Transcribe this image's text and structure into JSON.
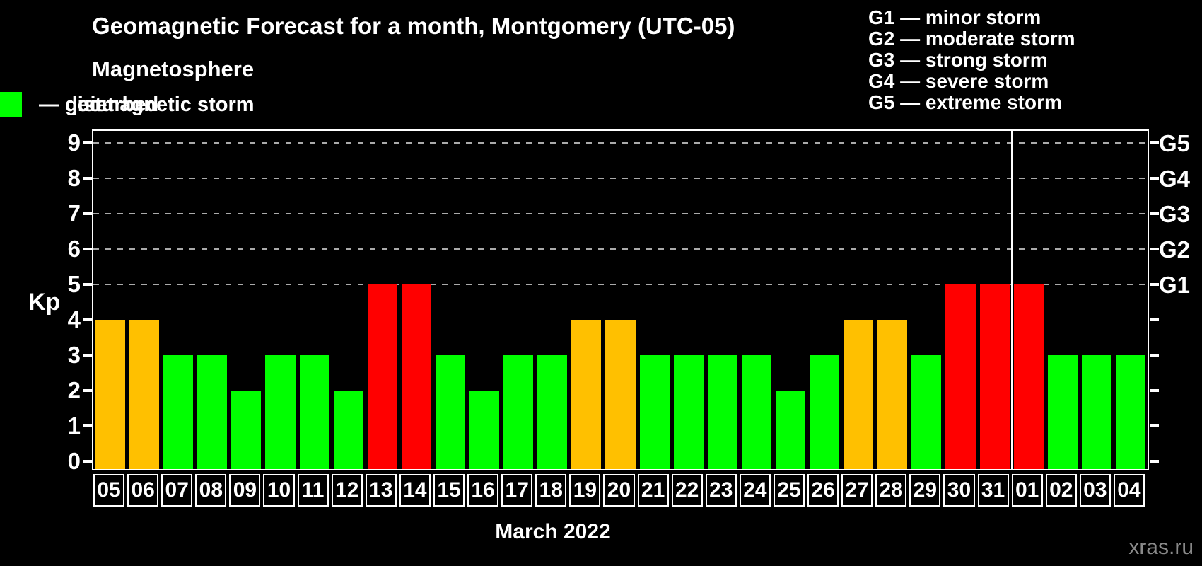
{
  "subtitle": "Magnetosphere",
  "watermark": "xras.ru",
  "legend": [
    {
      "name": "quiet",
      "label": "— quiet",
      "color": "#00ff00"
    },
    {
      "name": "disturbed",
      "label": "— disturbed",
      "color": "#ffc000"
    },
    {
      "name": "geomagnetic-storm",
      "label": "— geomagnetic storm",
      "color": "#ff0000"
    }
  ],
  "g_legend": [
    {
      "text": "G1 — minor storm"
    },
    {
      "text": "G2 — moderate storm"
    },
    {
      "text": "G3 — strong storm"
    },
    {
      "text": "G4 — severe storm"
    },
    {
      "text": "G5 — extreme storm"
    }
  ],
  "chart_data": {
    "type": "bar",
    "title": "Geomagnetic Forecast for a month, Montgomery (UTC-05)",
    "xlabel": "March 2022",
    "ylabel": "Kp",
    "ylim": [
      0,
      9
    ],
    "y_ticks": [
      0,
      1,
      2,
      3,
      4,
      5,
      6,
      7,
      8,
      9
    ],
    "grid_levels": [
      5,
      6,
      7,
      8,
      9
    ],
    "grid_color": "#aaaaaa",
    "frame_color": "#ffffff",
    "legend_position": "top",
    "categories": [
      "05",
      "06",
      "07",
      "08",
      "09",
      "10",
      "11",
      "12",
      "13",
      "14",
      "15",
      "16",
      "17",
      "18",
      "19",
      "20",
      "21",
      "22",
      "23",
      "24",
      "25",
      "26",
      "27",
      "28",
      "29",
      "30",
      "31",
      "01",
      "02",
      "03",
      "04"
    ],
    "values": [
      4,
      4,
      3,
      3,
      2,
      3,
      3,
      2,
      5,
      5,
      3,
      2,
      3,
      3,
      4,
      4,
      3,
      3,
      3,
      3,
      2,
      3,
      4,
      4,
      3,
      5,
      5,
      5,
      3,
      3,
      3
    ],
    "statuses": [
      "disturbed",
      "disturbed",
      "quiet",
      "quiet",
      "quiet",
      "quiet",
      "quiet",
      "quiet",
      "storm",
      "storm",
      "quiet",
      "quiet",
      "quiet",
      "quiet",
      "disturbed",
      "disturbed",
      "quiet",
      "quiet",
      "quiet",
      "quiet",
      "quiet",
      "quiet",
      "disturbed",
      "disturbed",
      "quiet",
      "storm",
      "storm",
      "storm",
      "quiet",
      "quiet",
      "quiet"
    ],
    "status_colors": {
      "quiet": "#00ff00",
      "disturbed": "#ffc000",
      "storm": "#ff0000"
    },
    "month_separator_after_index": 26,
    "right_axis_labels": [
      {
        "code": "G1",
        "level": 5
      },
      {
        "code": "G2",
        "level": 6
      },
      {
        "code": "G3",
        "level": 7
      },
      {
        "code": "G4",
        "level": 8
      },
      {
        "code": "G5",
        "level": 9
      }
    ]
  }
}
